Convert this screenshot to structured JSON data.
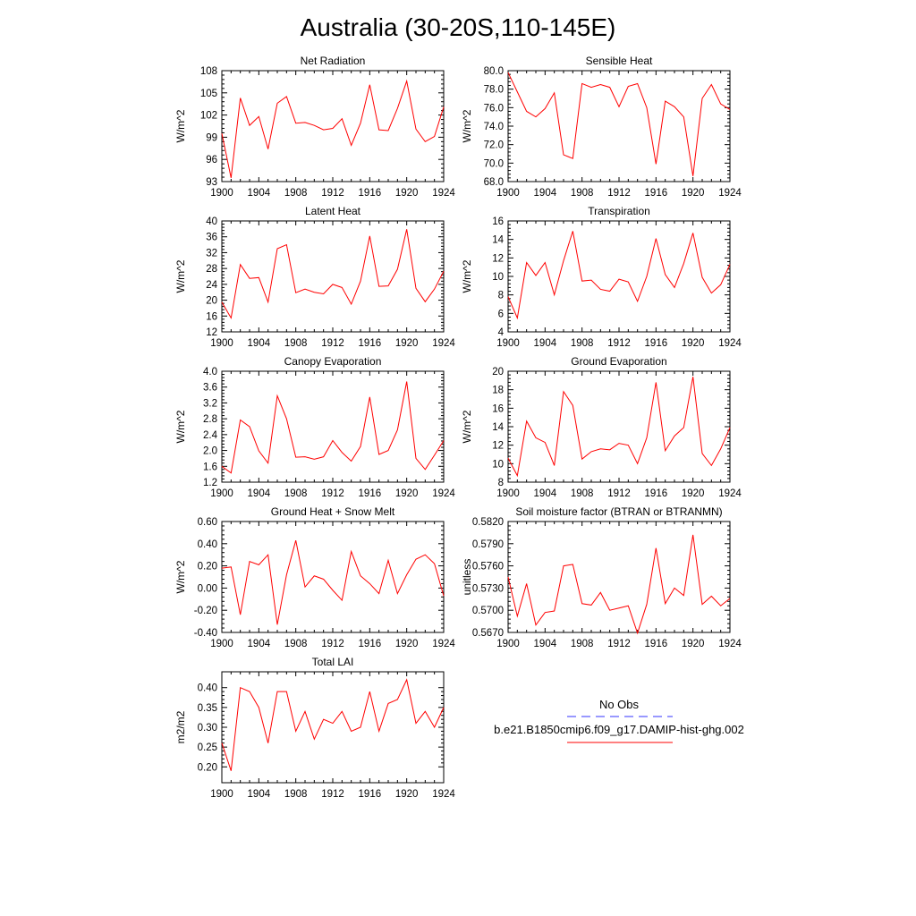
{
  "figure": {
    "title": "Australia (30-20S,110-145E)"
  },
  "legend": {
    "items": [
      {
        "label": "No Obs",
        "color": "#3333ff",
        "style": "dashed"
      },
      {
        "label": "b.e21.B1850cmip6.f09_g17.DAMIP-hist-ghg.002",
        "color": "#ff0000",
        "style": "solid"
      }
    ]
  },
  "chart_data": [
    {
      "type": "line",
      "title": "Net Radiation",
      "xlabel": "",
      "ylabel": "W/m^2",
      "xlim": [
        1900,
        1924
      ],
      "ylim": [
        93,
        108
      ],
      "xticks": [
        1900,
        1904,
        1908,
        1912,
        1916,
        1920,
        1924
      ],
      "yticks": [
        "93",
        "96",
        "99",
        "102",
        "105",
        "108"
      ],
      "series": [
        {
          "color": "#ff0000",
          "x": [
            1900,
            1901,
            1902,
            1903,
            1904,
            1905,
            1906,
            1907,
            1908,
            1909,
            1910,
            1911,
            1912,
            1913,
            1914,
            1915,
            1916,
            1917,
            1918,
            1919,
            1920,
            1921,
            1922,
            1923,
            1924
          ],
          "y": [
            99.5,
            93.5,
            104.3,
            100.6,
            101.8,
            97.4,
            103.6,
            104.5,
            100.9,
            101.0,
            100.6,
            100.0,
            100.2,
            101.5,
            97.9,
            100.9,
            106.1,
            100.0,
            99.9,
            102.9,
            106.6,
            100.1,
            98.4,
            99.1,
            103.1
          ]
        }
      ]
    },
    {
      "type": "line",
      "title": "Sensible Heat",
      "xlabel": "",
      "ylabel": "W/m^2",
      "xlim": [
        1900,
        1924
      ],
      "ylim": [
        68,
        80
      ],
      "xticks": [
        1900,
        1904,
        1908,
        1912,
        1916,
        1920,
        1924
      ],
      "yticks": [
        "68.0",
        "70.0",
        "72.0",
        "74.0",
        "76.0",
        "78.0",
        "80.0"
      ],
      "series": [
        {
          "color": "#ff0000",
          "x": [
            1900,
            1901,
            1902,
            1903,
            1904,
            1905,
            1906,
            1907,
            1908,
            1909,
            1910,
            1911,
            1912,
            1913,
            1914,
            1915,
            1916,
            1917,
            1918,
            1919,
            1920,
            1921,
            1922,
            1923,
            1924
          ],
          "y": [
            79.8,
            77.7,
            75.6,
            75.0,
            75.9,
            77.6,
            70.9,
            70.5,
            78.6,
            78.2,
            78.5,
            78.2,
            76.1,
            78.3,
            78.6,
            76.0,
            69.9,
            76.7,
            76.1,
            75.0,
            68.6,
            77.0,
            78.5,
            76.4,
            75.8
          ]
        }
      ]
    },
    {
      "type": "line",
      "title": "Latent Heat",
      "xlabel": "",
      "ylabel": "W/m^2",
      "xlim": [
        1900,
        1924
      ],
      "ylim": [
        12,
        40
      ],
      "xticks": [
        1900,
        1904,
        1908,
        1912,
        1916,
        1920,
        1924
      ],
      "yticks": [
        "12",
        "16",
        "20",
        "24",
        "28",
        "32",
        "36",
        "40"
      ],
      "series": [
        {
          "color": "#ff0000",
          "x": [
            1900,
            1901,
            1902,
            1903,
            1904,
            1905,
            1906,
            1907,
            1908,
            1909,
            1910,
            1911,
            1912,
            1913,
            1914,
            1915,
            1916,
            1917,
            1918,
            1919,
            1920,
            1921,
            1922,
            1923,
            1924
          ],
          "y": [
            19.5,
            15.5,
            29.0,
            25.5,
            25.7,
            19.5,
            33.0,
            34.0,
            21.9,
            22.8,
            22.0,
            21.6,
            24.0,
            23.2,
            19.0,
            24.8,
            36.2,
            23.5,
            23.6,
            27.8,
            37.9,
            23.0,
            19.6,
            22.8,
            27.3
          ]
        }
      ]
    },
    {
      "type": "line",
      "title": "Transpiration",
      "xlabel": "",
      "ylabel": "W/m^2",
      "xlim": [
        1900,
        1924
      ],
      "ylim": [
        4,
        16
      ],
      "xticks": [
        1900,
        1904,
        1908,
        1912,
        1916,
        1920,
        1924
      ],
      "yticks": [
        "4",
        "6",
        "8",
        "10",
        "12",
        "14",
        "16"
      ],
      "series": [
        {
          "color": "#ff0000",
          "x": [
            1900,
            1901,
            1902,
            1903,
            1904,
            1905,
            1906,
            1907,
            1908,
            1909,
            1910,
            1911,
            1912,
            1913,
            1914,
            1915,
            1916,
            1917,
            1918,
            1919,
            1920,
            1921,
            1922,
            1923,
            1924
          ],
          "y": [
            7.8,
            5.5,
            11.5,
            10.1,
            11.5,
            8.0,
            11.7,
            14.9,
            9.5,
            9.6,
            8.6,
            8.4,
            9.7,
            9.4,
            7.3,
            10.0,
            14.1,
            10.2,
            8.8,
            11.4,
            14.7,
            9.9,
            8.2,
            9.1,
            11.3
          ]
        }
      ]
    },
    {
      "type": "line",
      "title": "Canopy Evaporation",
      "xlabel": "",
      "ylabel": "W/m^2",
      "xlim": [
        1900,
        1924
      ],
      "ylim": [
        1.2,
        4.0
      ],
      "xticks": [
        1900,
        1904,
        1908,
        1912,
        1916,
        1920,
        1924
      ],
      "yticks": [
        "1.2",
        "1.6",
        "2.0",
        "2.4",
        "2.8",
        "3.2",
        "3.6",
        "4.0"
      ],
      "series": [
        {
          "color": "#ff0000",
          "x": [
            1900,
            1901,
            1902,
            1903,
            1904,
            1905,
            1906,
            1907,
            1908,
            1909,
            1910,
            1911,
            1912,
            1913,
            1914,
            1915,
            1916,
            1917,
            1918,
            1919,
            1920,
            1921,
            1922,
            1923,
            1924
          ],
          "y": [
            1.6,
            1.43,
            2.77,
            2.6,
            1.99,
            1.68,
            3.38,
            2.8,
            1.83,
            1.84,
            1.78,
            1.84,
            2.25,
            1.95,
            1.73,
            2.1,
            3.35,
            1.9,
            2.0,
            2.52,
            3.74,
            1.8,
            1.52,
            1.88,
            2.25
          ]
        }
      ]
    },
    {
      "type": "line",
      "title": "Ground Evaporation",
      "xlabel": "",
      "ylabel": "W/m^2",
      "xlim": [
        1900,
        1924
      ],
      "ylim": [
        8,
        20
      ],
      "xticks": [
        1900,
        1904,
        1908,
        1912,
        1916,
        1920,
        1924
      ],
      "yticks": [
        "8",
        "10",
        "12",
        "14",
        "16",
        "18",
        "20"
      ],
      "series": [
        {
          "color": "#ff0000",
          "x": [
            1900,
            1901,
            1902,
            1903,
            1904,
            1905,
            1906,
            1907,
            1908,
            1909,
            1910,
            1911,
            1912,
            1913,
            1914,
            1915,
            1916,
            1917,
            1918,
            1919,
            1920,
            1921,
            1922,
            1923,
            1924
          ],
          "y": [
            10.6,
            8.7,
            14.6,
            12.8,
            12.3,
            9.8,
            17.8,
            16.3,
            10.5,
            11.3,
            11.6,
            11.5,
            12.2,
            12.0,
            10.0,
            12.8,
            18.8,
            11.4,
            13.0,
            13.9,
            19.4,
            11.1,
            9.8,
            11.6,
            13.9
          ]
        }
      ]
    },
    {
      "type": "line",
      "title": "Ground Heat + Snow Melt",
      "xlabel": "",
      "ylabel": "W/m^2",
      "xlim": [
        1900,
        1924
      ],
      "ylim": [
        -0.4,
        0.6
      ],
      "xticks": [
        1900,
        1904,
        1908,
        1912,
        1916,
        1920,
        1924
      ],
      "yticks": [
        "-0.40",
        "-0.20",
        "0.00",
        "0.20",
        "0.40",
        "0.60"
      ],
      "series": [
        {
          "color": "#ff0000",
          "x": [
            1900,
            1901,
            1902,
            1903,
            1904,
            1905,
            1906,
            1907,
            1908,
            1909,
            1910,
            1911,
            1912,
            1913,
            1914,
            1915,
            1916,
            1917,
            1918,
            1919,
            1920,
            1921,
            1922,
            1923,
            1924
          ],
          "y": [
            0.18,
            0.19,
            -0.24,
            0.24,
            0.21,
            0.3,
            -0.33,
            0.12,
            0.43,
            0.01,
            0.11,
            0.08,
            -0.02,
            -0.11,
            0.33,
            0.11,
            0.04,
            -0.05,
            0.25,
            -0.05,
            0.12,
            0.26,
            0.3,
            0.22,
            -0.07
          ]
        }
      ]
    },
    {
      "type": "line",
      "title": "Soil moisture factor (BTRAN or BTRANMN)",
      "xlabel": "",
      "ylabel": "unitless",
      "xlim": [
        1900,
        1924
      ],
      "ylim": [
        0.567,
        0.582
      ],
      "xticks": [
        1900,
        1904,
        1908,
        1912,
        1916,
        1920,
        1924
      ],
      "yticks": [
        "0.5670",
        "0.5700",
        "0.5730",
        "0.5760",
        "0.5790",
        "0.5820"
      ],
      "series": [
        {
          "color": "#ff0000",
          "x": [
            1900,
            1901,
            1902,
            1903,
            1904,
            1905,
            1906,
            1907,
            1908,
            1909,
            1910,
            1911,
            1912,
            1913,
            1914,
            1915,
            1916,
            1917,
            1918,
            1919,
            1920,
            1921,
            1922,
            1923,
            1924
          ],
          "y": [
            0.5745,
            0.5692,
            0.5736,
            0.568,
            0.5697,
            0.5699,
            0.576,
            0.5762,
            0.5709,
            0.5707,
            0.5724,
            0.57,
            0.5703,
            0.5706,
            0.5669,
            0.5708,
            0.5784,
            0.5709,
            0.573,
            0.572,
            0.5802,
            0.5708,
            0.5719,
            0.5706,
            0.5716
          ]
        }
      ]
    },
    {
      "type": "line",
      "title": "Total LAI",
      "xlabel": "",
      "ylabel": "m2/m2",
      "xlim": [
        1900,
        1924
      ],
      "ylim": [
        0.16,
        0.44
      ],
      "xticks": [
        1900,
        1904,
        1908,
        1912,
        1916,
        1920,
        1924
      ],
      "yticks": [
        "0.20",
        "0.25",
        "0.30",
        "0.35",
        "0.40"
      ],
      "ytick_values": [
        0.2,
        0.25,
        0.3,
        0.35,
        0.4
      ],
      "series": [
        {
          "color": "#ff0000",
          "x": [
            1900,
            1901,
            1902,
            1903,
            1904,
            1905,
            1906,
            1907,
            1908,
            1909,
            1910,
            1911,
            1912,
            1913,
            1914,
            1915,
            1916,
            1917,
            1918,
            1919,
            1920,
            1921,
            1922,
            1923,
            1924
          ],
          "y": [
            0.26,
            0.19,
            0.4,
            0.39,
            0.35,
            0.26,
            0.39,
            0.39,
            0.29,
            0.34,
            0.27,
            0.32,
            0.31,
            0.34,
            0.29,
            0.3,
            0.39,
            0.29,
            0.36,
            0.37,
            0.42,
            0.31,
            0.34,
            0.3,
            0.35
          ]
        }
      ]
    }
  ]
}
